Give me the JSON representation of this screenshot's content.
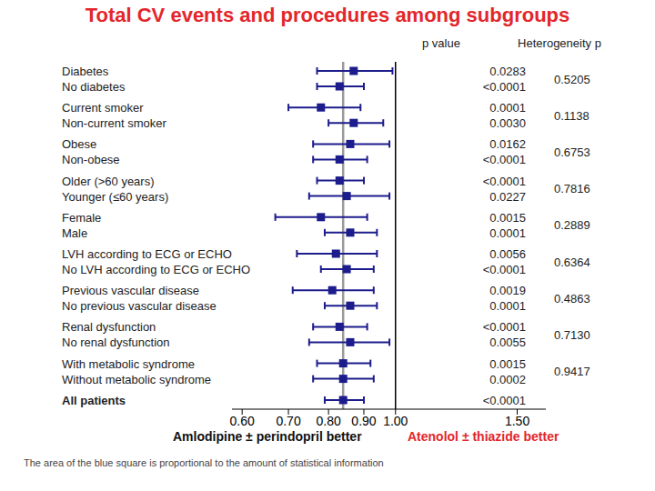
{
  "chart_data": {
    "type": "forest",
    "title": "Total CV events and procedures among subgroups",
    "columns": [
      "p value",
      "Heterogeneity p"
    ],
    "x_label_left": "Amlodipine ± perindopril better",
    "x_label_right": "Atenolol ± thiazide better",
    "note": "The area of the blue square is proportional to the amount of statistical information",
    "log": "x",
    "xlim": [
      0.58,
      1.65
    ],
    "xticks": [
      {
        "value": 0.6,
        "label": "0.60"
      },
      {
        "value": 0.7,
        "label": "0.70"
      },
      {
        "value": 0.8,
        "label": "0.80"
      },
      {
        "value": 0.9,
        "label": "0.90"
      },
      {
        "value": 1,
        "label": "1.00"
      },
      {
        "value": 1.5,
        "label": "1.50"
      }
    ],
    "null_line": 1,
    "color": "#1c1c8c",
    "groups": [
      {
        "categories": [
          "Diabetes",
          "No diabetes"
        ],
        "values": [
          0.87,
          0.83
        ],
        "ci_low": [
          0.77,
          0.77
        ],
        "ci_high": [
          0.99,
          0.9
        ],
        "p_values": [
          "0.0283",
          "<0.0001"
        ],
        "heterogeneity_p": "0.5205"
      },
      {
        "categories": [
          "Current smoker",
          "Non-current smoker"
        ],
        "values": [
          0.78,
          0.87
        ],
        "ci_low": [
          0.7,
          0.8
        ],
        "ci_high": [
          0.89,
          0.96
        ],
        "p_values": [
          "0.0001",
          "0.0030"
        ],
        "heterogeneity_p": "0.1138"
      },
      {
        "categories": [
          "Obese",
          "Non-obese"
        ],
        "values": [
          0.86,
          0.83
        ],
        "ci_low": [
          0.76,
          0.76
        ],
        "ci_high": [
          0.98,
          0.91
        ],
        "p_values": [
          "0.0162",
          "<0.0001"
        ],
        "heterogeneity_p": "0.6753"
      },
      {
        "categories": [
          "Older (>60 years)",
          "Younger (≤60 years)"
        ],
        "values": [
          0.83,
          0.85
        ],
        "ci_low": [
          0.77,
          0.75
        ],
        "ci_high": [
          0.9,
          0.98
        ],
        "p_values": [
          "<0.0001",
          "0.0227"
        ],
        "heterogeneity_p": "0.7816"
      },
      {
        "categories": [
          "Female",
          "Male"
        ],
        "values": [
          0.78,
          0.86
        ],
        "ci_low": [
          0.67,
          0.79
        ],
        "ci_high": [
          0.91,
          0.94
        ],
        "p_values": [
          "0.0015",
          "0.0001"
        ],
        "heterogeneity_p": "0.2889"
      },
      {
        "categories": [
          "LVH according to ECG or ECHO",
          "No LVH according to ECG or ECHO"
        ],
        "values": [
          0.82,
          0.85
        ],
        "ci_low": [
          0.72,
          0.78
        ],
        "ci_high": [
          0.94,
          0.93
        ],
        "p_values": [
          "0.0056",
          "<0.0001"
        ],
        "heterogeneity_p": "0.6364"
      },
      {
        "categories": [
          "Previous vascular disease",
          "No previous vascular disease"
        ],
        "values": [
          0.81,
          0.86
        ],
        "ci_low": [
          0.71,
          0.79
        ],
        "ci_high": [
          0.93,
          0.94
        ],
        "p_values": [
          "0.0019",
          "0.0001"
        ],
        "heterogeneity_p": "0.4863"
      },
      {
        "categories": [
          "Renal dysfunction",
          "No renal dysfunction"
        ],
        "values": [
          0.83,
          0.86
        ],
        "ci_low": [
          0.76,
          0.75
        ],
        "ci_high": [
          0.91,
          0.98
        ],
        "p_values": [
          "<0.0001",
          "0.0055"
        ],
        "heterogeneity_p": "0.7130"
      },
      {
        "categories": [
          "With metabolic syndrome",
          "Without metabolic syndrome"
        ],
        "values": [
          0.84,
          0.84
        ],
        "ci_low": [
          0.77,
          0.76
        ],
        "ci_high": [
          0.92,
          0.93
        ],
        "p_values": [
          "0.0015",
          "0.0002"
        ],
        "heterogeneity_p": "0.9417"
      }
    ],
    "overall": {
      "category": "All patients",
      "value": 0.84,
      "ci_low": 0.79,
      "ci_high": 0.9,
      "p_value": "<0.0001"
    }
  }
}
